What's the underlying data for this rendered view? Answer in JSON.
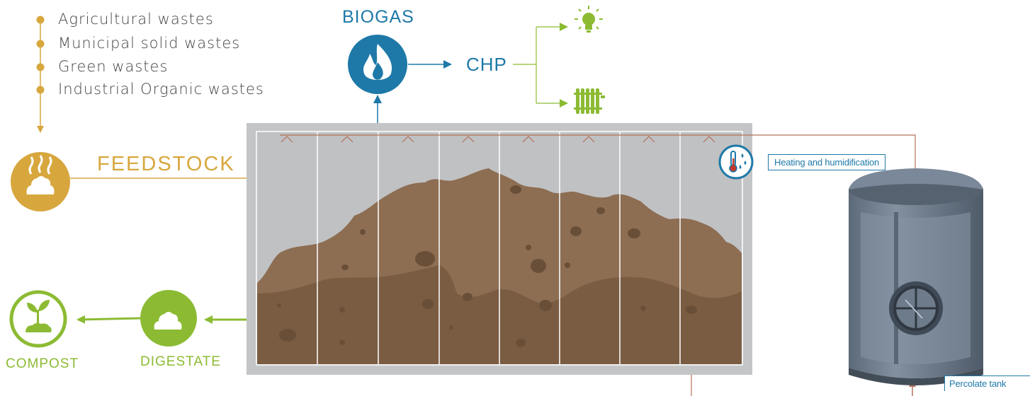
{
  "feedstock_sources": [
    "Agricultural wastes",
    "Municipal solid wastes",
    "Green wastes",
    "Industrial Organic wastes"
  ],
  "labels": {
    "biogas": "BIOGAS",
    "chp": "CHP",
    "feedstock": "FEEDSTOCK",
    "digestate": "DIGESTATE",
    "compost": "COMPOST",
    "heating": "Heating and humidification",
    "percolate": "Percolate tank"
  },
  "colors": {
    "gold": "#d7a73e",
    "blue": "#1e79a8",
    "green": "#8cbb33",
    "rust": "#b3705a",
    "chamber": "#c4c5c7",
    "soil_light": "#8d6e53",
    "soil_dark": "#7a5c42",
    "tank": "#6c7887"
  },
  "icons": [
    "flame-icon",
    "lightbulb-icon",
    "radiator-icon",
    "feedstock-pile-icon",
    "digestate-pile-icon",
    "sprout-icon",
    "thermometer-icon",
    "water-drops-icon",
    "percolate-tank-icon"
  ]
}
